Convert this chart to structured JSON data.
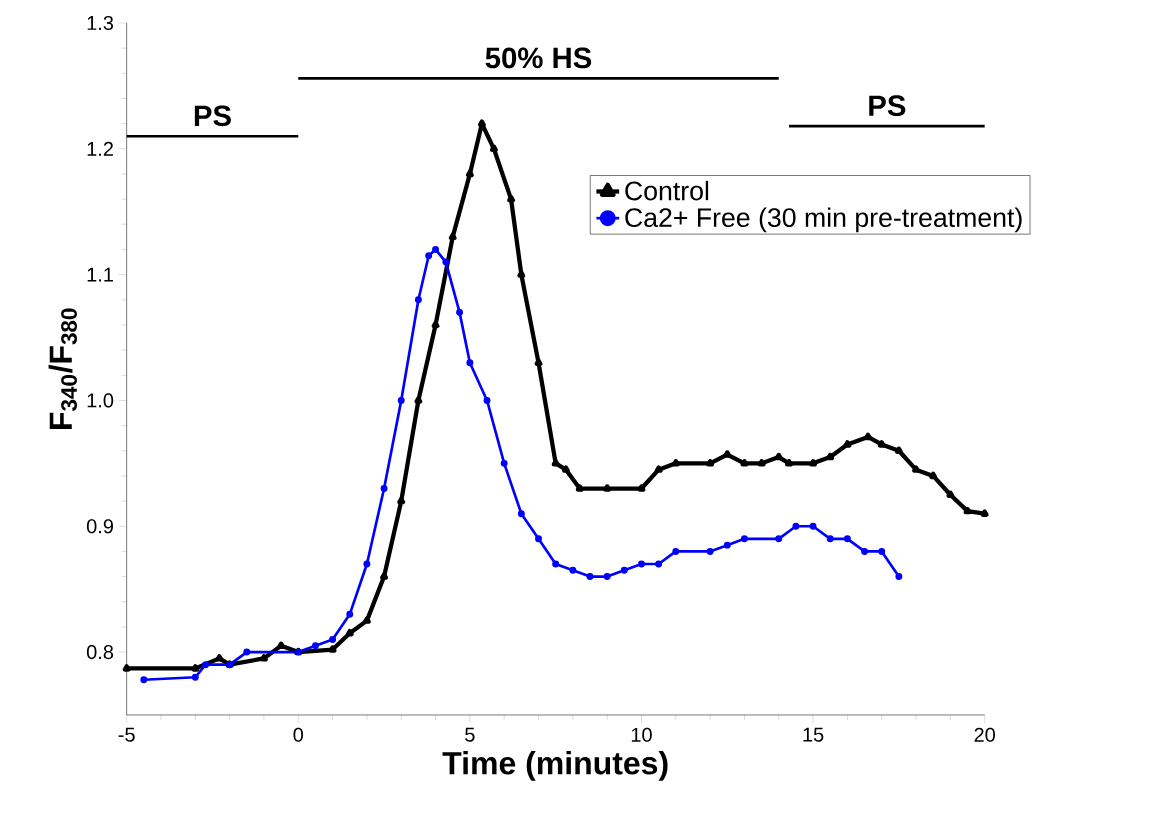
{
  "chart_data": {
    "type": "line",
    "xlabel": "Time (minutes)",
    "ylabel": "F$_{340}$/F$_{380}$",
    "xlim": [
      -5,
      20
    ],
    "ylim": [
      0.75,
      1.3
    ],
    "xticks": [
      -5,
      0,
      5,
      10,
      15,
      20
    ],
    "yticks": [
      0.8,
      0.9,
      {
        "value": 1.0,
        "label": "1.0"
      },
      1.1,
      1.2,
      1.3
    ],
    "legend": "right",
    "line_style": "solid",
    "series": [
      {
        "name": "Control",
        "color": "#000000",
        "marker": "triangle",
        "x": [
          -5,
          -3,
          -2.3,
          -2,
          -1,
          -0.5,
          0,
          1,
          1.5,
          2,
          2.5,
          3,
          3.5,
          4,
          4.5,
          5,
          5.35,
          5.7,
          6.2,
          6.5,
          7,
          7.5,
          7.8,
          8.2,
          9,
          10,
          10.5,
          11,
          12,
          12.5,
          13,
          13.5,
          14,
          14.3,
          15,
          15.5,
          16,
          16.6,
          17,
          17.5,
          18,
          18.5,
          19,
          19.5,
          20
        ],
        "values": [
          0.787,
          0.787,
          0.795,
          0.79,
          0.795,
          0.805,
          0.8,
          0.802,
          0.815,
          0.825,
          0.86,
          0.92,
          1.0,
          1.06,
          1.13,
          1.18,
          1.22,
          1.2,
          1.16,
          1.1,
          1.03,
          0.95,
          0.945,
          0.93,
          0.93,
          0.93,
          0.945,
          0.95,
          0.95,
          0.957,
          0.95,
          0.95,
          0.955,
          0.95,
          0.95,
          0.955,
          0.965,
          0.971,
          0.965,
          0.96,
          0.945,
          0.94,
          0.925,
          0.912,
          0.91
        ]
      },
      {
        "name": "Ca2+ Free (30 min pre-treatment)",
        "color": "#0000ff",
        "marker": "circle",
        "x": [
          -4.5,
          -3,
          -2.7,
          -2,
          -1.5,
          0,
          0.5,
          1,
          1.5,
          2,
          2.5,
          3,
          3.5,
          3.8,
          4,
          4.3,
          4.7,
          5,
          5.5,
          6,
          6.5,
          7,
          7.5,
          8,
          8.5,
          9,
          9.5,
          10,
          10.5,
          11,
          12,
          12.5,
          13,
          14,
          14.5,
          15,
          15.5,
          16,
          16.5,
          17,
          17.5
        ],
        "values": [
          0.778,
          0.78,
          0.79,
          0.79,
          0.8,
          0.8,
          0.805,
          0.81,
          0.83,
          0.87,
          0.93,
          1.0,
          1.08,
          1.115,
          1.12,
          1.11,
          1.07,
          1.03,
          1.0,
          0.95,
          0.91,
          0.89,
          0.87,
          0.865,
          0.86,
          0.86,
          0.865,
          0.87,
          0.87,
          0.88,
          0.88,
          0.885,
          0.89,
          0.89,
          0.9,
          0.9,
          0.89,
          0.89,
          0.88,
          0.88,
          0.86
        ]
      },
      {
        "name": "PS",
        "color": "#000000",
        "x": [
          -5,
          0
        ],
        "values": [
          1.21,
          1.21
        ]
      },
      {
        "name": "50% HS",
        "color": "#000000",
        "x": [
          0,
          14
        ],
        "values": [
          1.256,
          1.256
        ]
      },
      {
        "name": "PS",
        "color": "#000000",
        "x": [
          14.3,
          20
        ],
        "values": [
          1.218,
          1.218
        ]
      }
    ]
  }
}
